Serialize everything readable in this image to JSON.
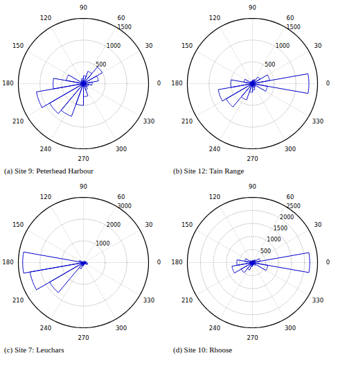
{
  "chart_data": [
    {
      "type": "rose",
      "title": "(a) Site 9:  Peterhead Harbour",
      "x": [
        0,
        20,
        40,
        60,
        80,
        100,
        120,
        140,
        160,
        180,
        200,
        220,
        240,
        260,
        280,
        300,
        320,
        340
      ],
      "values": [
        200,
        350,
        500,
        300,
        180,
        120,
        90,
        60,
        400,
        700,
        1100,
        900,
        800,
        500,
        300,
        150,
        100,
        120
      ],
      "color": "#0000CC",
      "xlim": [
        0,
        360
      ],
      "xticks": [
        90,
        60,
        30,
        0,
        330,
        300,
        270,
        240,
        210,
        180,
        150,
        120
      ],
      "ylim": [
        0,
        1500
      ],
      "yticks": [
        500,
        1000,
        1500
      ],
      "grid": true
    },
    {
      "type": "rose",
      "title": "(b) Site 12:  Tain Range",
      "x": [
        0,
        20,
        40,
        60,
        80,
        100,
        120,
        140,
        160,
        180,
        200,
        220,
        240,
        260,
        280,
        300,
        320,
        340
      ],
      "values": [
        1300,
        400,
        200,
        100,
        80,
        60,
        50,
        60,
        200,
        500,
        800,
        700,
        400,
        200,
        150,
        100,
        80,
        350
      ],
      "color": "#0000CC",
      "xlim": [
        0,
        360
      ],
      "xticks": [
        90,
        60,
        30,
        0,
        330,
        300,
        270,
        240,
        210,
        180,
        150,
        120
      ],
      "ylim": [
        0,
        1500
      ],
      "yticks": [
        500,
        1000,
        1500
      ],
      "grid": true
    },
    {
      "type": "rose",
      "title": "(c) Site 7:  Leuchars",
      "x": [
        0,
        20,
        40,
        60,
        80,
        100,
        120,
        140,
        160,
        180,
        200,
        220,
        240,
        260,
        280,
        300,
        320,
        340
      ],
      "values": [
        150,
        100,
        80,
        60,
        40,
        30,
        30,
        50,
        200,
        2800,
        2500,
        1800,
        300,
        150,
        100,
        80,
        100,
        200
      ],
      "color": "#0000CC",
      "xlim": [
        0,
        360
      ],
      "xticks": [
        90,
        60,
        30,
        0,
        330,
        300,
        270,
        240,
        210,
        180,
        150,
        120
      ],
      "ylim": [
        0,
        3000
      ],
      "yticks": [
        1000,
        2000,
        3000
      ],
      "grid": true
    },
    {
      "type": "rose",
      "title": "(d) Site 10:  Rhoose",
      "x": [
        0,
        20,
        40,
        60,
        80,
        100,
        120,
        140,
        160,
        180,
        200,
        220,
        240,
        260,
        280,
        300,
        320,
        340
      ],
      "values": [
        2200,
        300,
        150,
        100,
        80,
        60,
        50,
        100,
        300,
        600,
        800,
        500,
        300,
        150,
        100,
        80,
        150,
        600
      ],
      "color": "#0000CC",
      "xlim": [
        0,
        360
      ],
      "xticks": [
        90,
        60,
        30,
        0,
        330,
        300,
        270,
        240,
        210,
        180,
        150,
        120
      ],
      "ylim": [
        0,
        2500
      ],
      "yticks": [
        500,
        1000,
        1500,
        2000,
        2500
      ],
      "grid": true
    }
  ]
}
